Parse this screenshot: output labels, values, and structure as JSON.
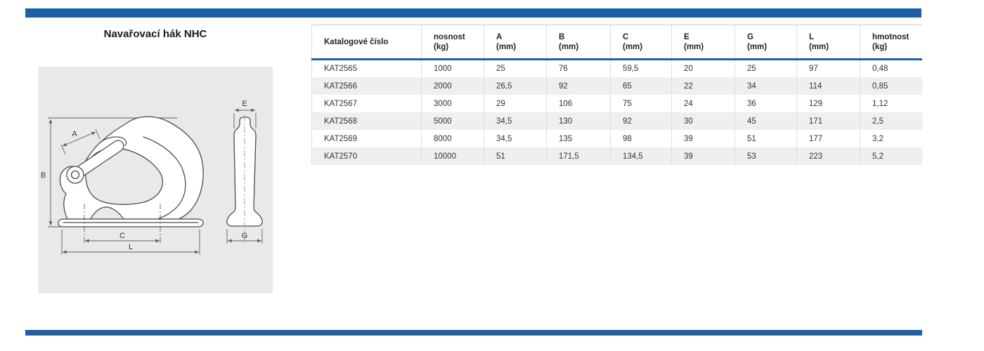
{
  "title": "Navařovací hák NHC",
  "colors": {
    "accent_blue": "#1e5fa6",
    "row_stripe": "#efefef",
    "drawing_bg": "#e9e9e9"
  },
  "drawing": {
    "dim_labels": {
      "a": "A",
      "b": "B",
      "c": "C",
      "l": "L",
      "e": "E",
      "g": "G"
    }
  },
  "table": {
    "columns": [
      {
        "label": "Katalogové číslo",
        "unit": ""
      },
      {
        "label": "nosnost",
        "unit": "(kg)"
      },
      {
        "label": "A",
        "unit": "(mm)"
      },
      {
        "label": "B",
        "unit": "(mm)"
      },
      {
        "label": "C",
        "unit": "(mm)"
      },
      {
        "label": "E",
        "unit": "(mm)"
      },
      {
        "label": "G",
        "unit": "(mm)"
      },
      {
        "label": "L",
        "unit": "(mm)"
      },
      {
        "label": "hmotnost",
        "unit": "(kg)"
      }
    ],
    "rows": [
      [
        "KAT2565",
        "1000",
        "25",
        "76",
        "59,5",
        "20",
        "25",
        "97",
        "0,48"
      ],
      [
        "KAT2566",
        "2000",
        "26,5",
        "92",
        "65",
        "22",
        "34",
        "114",
        "0,85"
      ],
      [
        "KAT2567",
        "3000",
        "29",
        "106",
        "75",
        "24",
        "36",
        "129",
        "1,12"
      ],
      [
        "KAT2568",
        "5000",
        "34,5",
        "130",
        "92",
        "30",
        "45",
        "171",
        "2,5"
      ],
      [
        "KAT2569",
        "8000",
        "34,5",
        "135",
        "98",
        "39",
        "51",
        "177",
        "3,2"
      ],
      [
        "KAT2570",
        "10000",
        "51",
        "171,5",
        "134,5",
        "39",
        "53",
        "223",
        "5,2"
      ]
    ]
  }
}
